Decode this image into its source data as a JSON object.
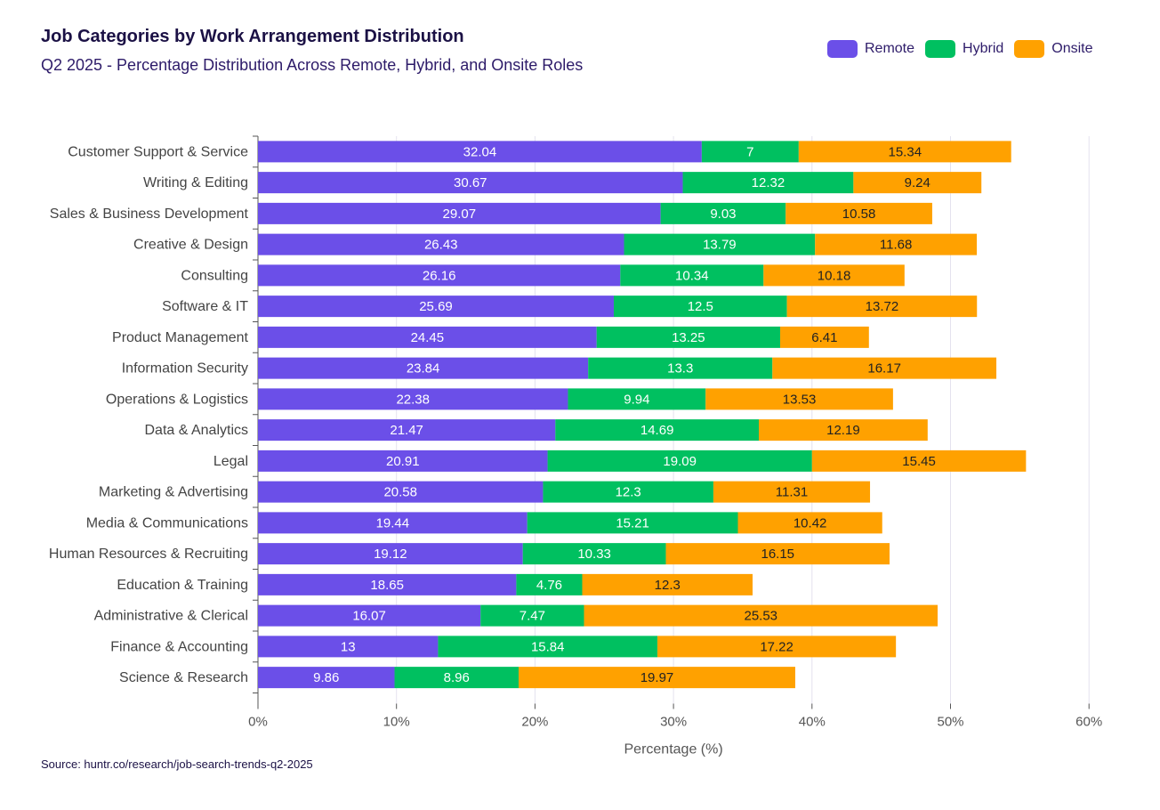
{
  "header": {
    "title": "Job Categories by Work Arrangement Distribution",
    "subtitle": "Q2 2025 - Percentage Distribution Across Remote, Hybrid, and Onsite Roles"
  },
  "footer": {
    "source": "Source: huntr.co/research/job-search-trends-q2-2025"
  },
  "colors": {
    "remote": "#6b4fe8",
    "hybrid": "#00c060",
    "onsite": "#ffa100",
    "grid": "#e4e2ee",
    "axis": "#555555"
  },
  "chart_data": {
    "type": "bar",
    "orientation": "horizontal",
    "stacked": true,
    "title": "Job Categories by Work Arrangement Distribution",
    "subtitle": "Q2 2025 - Percentage Distribution Across Remote, Hybrid, and Onsite Roles",
    "xlabel": "Percentage (%)",
    "ylabel": "",
    "xlim": [
      0,
      60
    ],
    "xticks": [
      0,
      10,
      20,
      30,
      40,
      50,
      60
    ],
    "xtick_labels": [
      "0%",
      "10%",
      "20%",
      "30%",
      "40%",
      "50%",
      "60%"
    ],
    "grid": true,
    "legend_position": "top-right",
    "categories": [
      "Customer Support & Service",
      "Writing & Editing",
      "Sales & Business Development",
      "Creative & Design",
      "Consulting",
      "Software & IT",
      "Product Management",
      "Information Security",
      "Operations & Logistics",
      "Data & Analytics",
      "Legal",
      "Marketing & Advertising",
      "Media & Communications",
      "Human Resources & Recruiting",
      "Education & Training",
      "Administrative & Clerical",
      "Finance & Accounting",
      "Science & Research"
    ],
    "series": [
      {
        "name": "Remote",
        "color": "#6b4fe8",
        "label_color": "#ffffff",
        "values": [
          32.04,
          30.67,
          29.07,
          26.43,
          26.16,
          25.69,
          24.45,
          23.84,
          22.38,
          21.47,
          20.91,
          20.58,
          19.44,
          19.12,
          18.65,
          16.07,
          13,
          9.86
        ]
      },
      {
        "name": "Hybrid",
        "color": "#00c060",
        "label_color": "#ffffff",
        "values": [
          7,
          12.32,
          9.03,
          13.79,
          10.34,
          12.5,
          13.25,
          13.3,
          9.94,
          14.69,
          19.09,
          12.3,
          15.21,
          10.33,
          4.76,
          7.47,
          15.84,
          8.96
        ]
      },
      {
        "name": "Onsite",
        "color": "#ffa100",
        "label_color": "#222222",
        "values": [
          15.34,
          9.24,
          10.58,
          11.68,
          10.18,
          13.72,
          6.41,
          16.17,
          13.53,
          12.19,
          15.45,
          11.31,
          10.42,
          16.15,
          12.3,
          25.53,
          17.22,
          19.97
        ]
      }
    ]
  }
}
